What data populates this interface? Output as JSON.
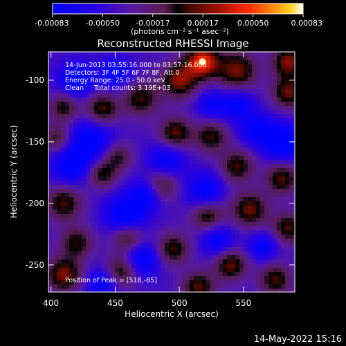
{
  "chart_data": {
    "type": "heatmap",
    "title": "Reconstructed RHESSI Image",
    "xlabel": "Heliocentric X (arcsec)",
    "ylabel": "Heliocentric Y (arcsec)",
    "xlim": [
      398,
      590
    ],
    "ylim": [
      -272,
      -77
    ],
    "xticks": [
      400,
      450,
      500,
      550
    ],
    "yticks": [
      -100,
      -150,
      -200,
      -250
    ],
    "colorbar": {
      "ticks": [
        "-0.00083",
        "-0.00050",
        "-0.00017",
        "0.00017",
        "0.00050",
        "0.00083"
      ],
      "unit": "(photons cm⁻² s⁻¹ asec⁻²)",
      "range": [
        -0.00083,
        0.00083
      ]
    },
    "annotations": [
      "14-Jun-2013 03:55:16.000 to 03:57:16.000",
      "Detectors: 3F 4F 5F 6F 7F 8F, Att 0",
      "Energy Range: 25.0 - 50.0 keV",
      "Clean     Total counts: 3.19E+03"
    ],
    "peak_label": "Position of Peak = [518,-85]",
    "peak": [
      518,
      -85
    ],
    "peak_value": 0.00083,
    "footer_date": "14-May-2022 15:16",
    "sources": [
      {
        "x": 518,
        "y": -85,
        "amp": 0.00083,
        "w": 9
      },
      {
        "x": 500,
        "y": -100,
        "amp": 0.00062,
        "w": 10
      },
      {
        "x": 545,
        "y": -92,
        "amp": 0.00058,
        "w": 11
      },
      {
        "x": 585,
        "y": -85,
        "amp": 0.0006,
        "w": 9
      },
      {
        "x": 585,
        "y": -110,
        "amp": 0.00055,
        "w": 9
      },
      {
        "x": 470,
        "y": -115,
        "amp": 0.00048,
        "w": 10
      },
      {
        "x": 440,
        "y": -123,
        "amp": 0.00052,
        "w": 9
      },
      {
        "x": 410,
        "y": -122,
        "amp": 0.00045,
        "w": 8
      },
      {
        "x": 405,
        "y": -147,
        "amp": 0.0004,
        "w": 8
      },
      {
        "x": 497,
        "y": -143,
        "amp": 0.00055,
        "w": 9
      },
      {
        "x": 525,
        "y": -146,
        "amp": 0.00048,
        "w": 9
      },
      {
        "x": 545,
        "y": -170,
        "amp": 0.0005,
        "w": 9
      },
      {
        "x": 580,
        "y": -180,
        "amp": 0.00052,
        "w": 9
      },
      {
        "x": 485,
        "y": -186,
        "amp": 0.0005,
        "w": 9
      },
      {
        "x": 440,
        "y": -176,
        "amp": 0.00045,
        "w": 8
      },
      {
        "x": 452,
        "y": -162,
        "amp": 0.0004,
        "w": 8
      },
      {
        "x": 410,
        "y": -200,
        "amp": 0.0005,
        "w": 10
      },
      {
        "x": 555,
        "y": -205,
        "amp": 0.00055,
        "w": 10
      },
      {
        "x": 522,
        "y": -210,
        "amp": 0.00048,
        "w": 9
      },
      {
        "x": 585,
        "y": -220,
        "amp": 0.0005,
        "w": 9
      },
      {
        "x": 460,
        "y": -228,
        "amp": 0.0005,
        "w": 9
      },
      {
        "x": 420,
        "y": -232,
        "amp": 0.00045,
        "w": 9
      },
      {
        "x": 495,
        "y": -237,
        "amp": 0.0005,
        "w": 9
      },
      {
        "x": 410,
        "y": -258,
        "amp": 0.0006,
        "w": 10
      },
      {
        "x": 455,
        "y": -255,
        "amp": 0.00052,
        "w": 9
      },
      {
        "x": 540,
        "y": -250,
        "amp": 0.00055,
        "w": 9
      },
      {
        "x": 575,
        "y": -262,
        "amp": 0.0005,
        "w": 9
      },
      {
        "x": 515,
        "y": -268,
        "amp": 0.00052,
        "w": 9
      },
      {
        "x": 458,
        "y": -210,
        "amp": -0.00055,
        "w": 11
      },
      {
        "x": 475,
        "y": -192,
        "amp": -0.0005,
        "w": 9
      },
      {
        "x": 470,
        "y": -245,
        "amp": -0.0005,
        "w": 10
      },
      {
        "x": 430,
        "y": -150,
        "amp": -0.0005,
        "w": 12
      },
      {
        "x": 415,
        "y": -170,
        "amp": -0.00045,
        "w": 10
      },
      {
        "x": 490,
        "y": -165,
        "amp": -0.0004,
        "w": 10
      },
      {
        "x": 580,
        "y": -150,
        "amp": -0.0006,
        "w": 10
      },
      {
        "x": 560,
        "y": -140,
        "amp": -0.0004,
        "w": 9
      },
      {
        "x": 520,
        "y": -190,
        "amp": -0.00045,
        "w": 10
      },
      {
        "x": 530,
        "y": -230,
        "amp": -0.0004,
        "w": 9
      },
      {
        "x": 565,
        "y": -235,
        "amp": -0.0004,
        "w": 8
      },
      {
        "x": 420,
        "y": -100,
        "amp": -0.00045,
        "w": 10
      },
      {
        "x": 450,
        "y": -95,
        "amp": -0.0004,
        "w": 9
      },
      {
        "x": 545,
        "y": -120,
        "amp": -0.0004,
        "w": 9
      },
      {
        "x": 525,
        "y": -120,
        "amp": -0.00035,
        "w": 8
      },
      {
        "x": 440,
        "y": -265,
        "amp": -0.0004,
        "w": 9
      }
    ]
  }
}
